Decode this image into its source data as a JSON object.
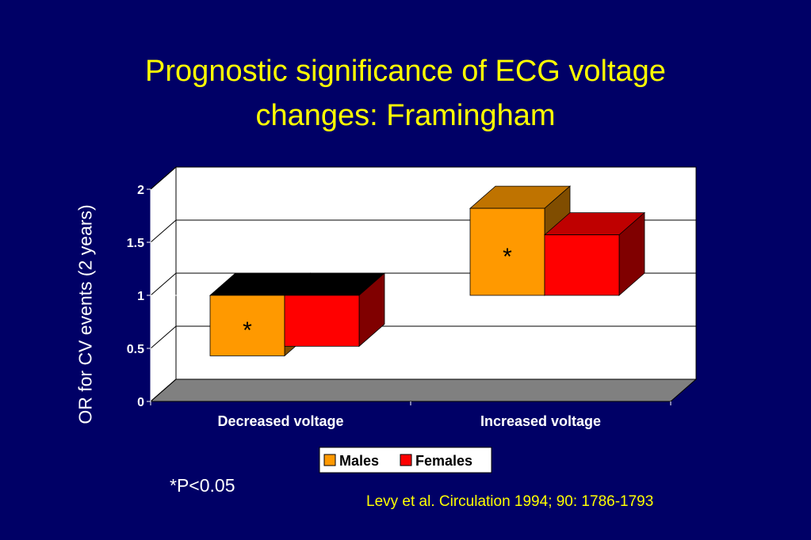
{
  "slide": {
    "title_line1": "Prognostic significance of ECG voltage",
    "title_line2": "changes: Framingham",
    "footnote": "*P<0.05",
    "source": "Levy et al. Circulation 1994; 90: 1786-1793"
  },
  "chart_data": {
    "type": "bar",
    "style": "3d-clustered-column",
    "categories": [
      "Decreased voltage",
      "Increased voltage"
    ],
    "series": [
      {
        "name": "Males",
        "values": [
          0.43,
          1.82
        ],
        "color": "#ff9900",
        "annotations": [
          "*",
          "*"
        ]
      },
      {
        "name": "Females",
        "values": [
          0.52,
          1.57
        ],
        "color": "#ff0000",
        "annotations": [
          "",
          ""
        ]
      }
    ],
    "baseline": 1,
    "ylabel": "OR for CV events (2 years)",
    "ylim": [
      0,
      2
    ],
    "yticks": [
      0,
      0.5,
      1,
      1.5,
      2
    ],
    "ytick_labels": [
      "0",
      "0.5",
      "1",
      "1.5",
      "2"
    ],
    "grid": true,
    "legend_position": "bottom"
  },
  "colors": {
    "background": "#000066",
    "title": "#ffff00",
    "plot_area": "#ffffff",
    "floor": "#808080"
  }
}
